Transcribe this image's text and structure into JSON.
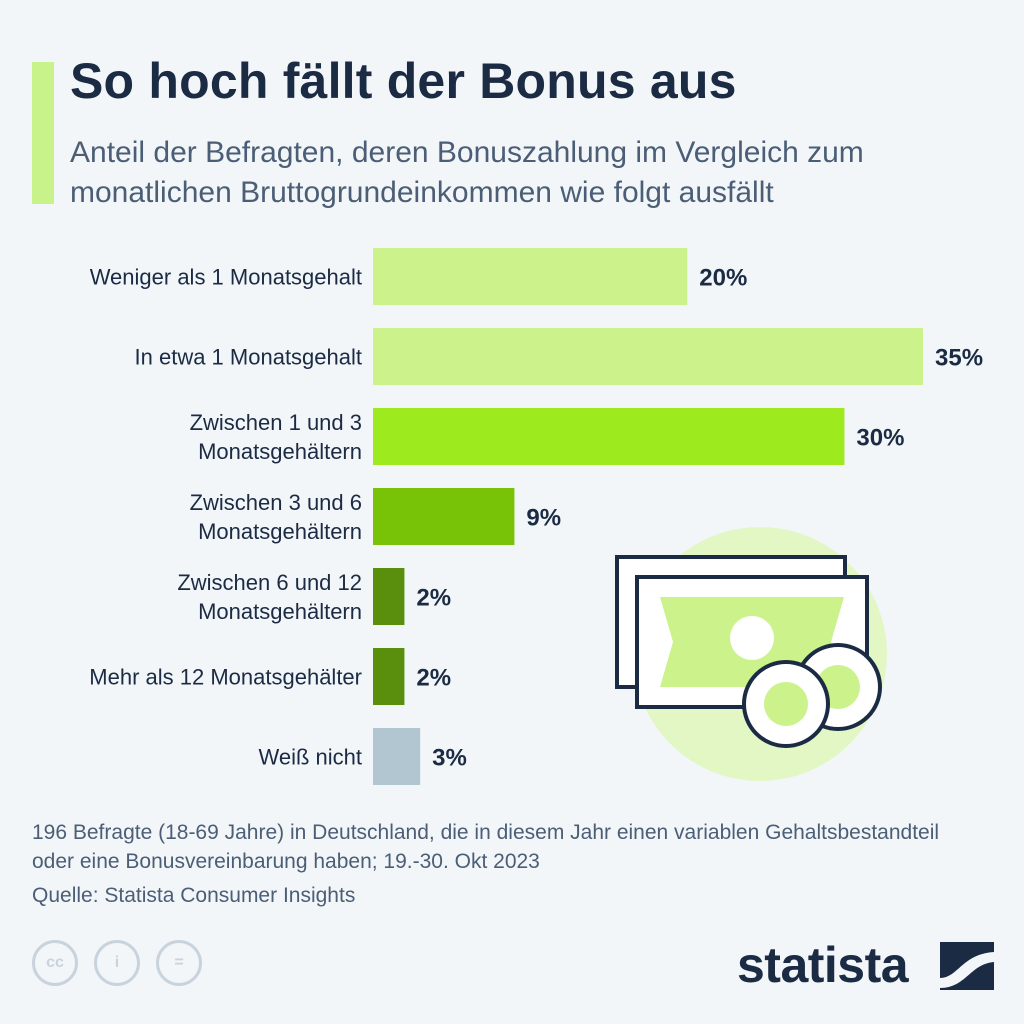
{
  "header": {
    "title": "So hoch fällt der Bonus aus",
    "subtitle": "Anteil der Befragten, deren Bonuszahlung im Vergleich zum monatlichen Bruttogrundeinkommen wie folgt ausfällt"
  },
  "chart_data": {
    "type": "bar",
    "orientation": "horizontal",
    "title": "So hoch fällt der Bonus aus",
    "subtitle": "Anteil der Befragten, deren Bonuszahlung im Vergleich zum monatlichen Bruttogrundeinkommen wie folgt ausfällt",
    "xlabel": "",
    "ylabel": "",
    "unit": "%",
    "xlim": [
      0,
      35
    ],
    "grid": false,
    "categories": [
      [
        "Weniger als 1 Monatsgehalt"
      ],
      [
        "In etwa 1 Monatsgehalt"
      ],
      [
        "Zwischen 1 und 3",
        "Monatsgehältern"
      ],
      [
        "Zwischen 3 und 6",
        "Monatsgehältern"
      ],
      [
        "Zwischen 6 und 12",
        "Monatsgehältern"
      ],
      [
        "Mehr als 12 Monatsgehälter"
      ],
      [
        "Weiß nicht"
      ]
    ],
    "values": [
      20,
      35,
      30,
      9,
      2,
      2,
      3
    ],
    "value_labels": [
      "20%",
      "35%",
      "30%",
      "9%",
      "2%",
      "2%",
      "3%"
    ],
    "colors": [
      "#ccf28c",
      "#ccf28c",
      "#9deb1f",
      "#78c208",
      "#5a8f0d",
      "#5a8f0d",
      "#b2c6d1"
    ]
  },
  "illustration": {
    "icon": "money-bills-coins-icon"
  },
  "footer": {
    "note": "196 Befragte (18-69 Jahre) in Deutschland, die in diesem Jahr einen variablen Gehaltsbestandteil oder eine Bonusvereinbarung haben; 19.-30. Okt 2023",
    "source": "Quelle: Statista Consumer Insights",
    "license_icons": [
      "cc-icon",
      "person-icon",
      "equals-icon"
    ],
    "license_glyphs": [
      "cc",
      "i",
      "="
    ],
    "brand": "statista"
  }
}
